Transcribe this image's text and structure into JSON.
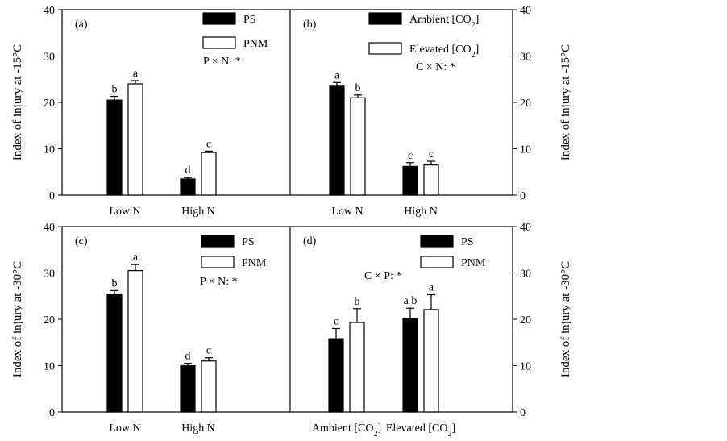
{
  "figure": {
    "background": "#ffffff",
    "stroke": "#000000",
    "filled_color": "#000000",
    "open_color": "#ffffff"
  },
  "chart_data": [
    {
      "panel": "(a)",
      "type": "bar",
      "categories": [
        "Low N",
        "High N"
      ],
      "series": [
        {
          "name": "PS",
          "fill": "filled",
          "values": [
            20.5,
            3.5
          ],
          "errors": [
            0.8,
            0.3
          ]
        },
        {
          "name": "PNM",
          "fill": "open",
          "values": [
            24,
            9.2
          ],
          "errors": [
            0.7,
            0.3
          ]
        }
      ],
      "significance_letters": [
        [
          "b",
          "d"
        ],
        [
          "a",
          "c"
        ]
      ],
      "annotation": "P × N: *",
      "ylabel": "Index of injury at -15°C",
      "ylim": [
        0,
        40
      ],
      "yticks": [
        0,
        10,
        20,
        30,
        40
      ],
      "yaxis_side": "left",
      "legend_position": "top-right"
    },
    {
      "panel": "(b)",
      "type": "bar",
      "categories": [
        "Low N",
        "High N"
      ],
      "series": [
        {
          "name": "Ambient [CO2]",
          "fill": "filled",
          "values": [
            23.5,
            6.2
          ],
          "errors": [
            0.8,
            0.8
          ]
        },
        {
          "name": "Elevated [CO2]",
          "fill": "open",
          "values": [
            21,
            6.5
          ],
          "errors": [
            0.6,
            0.8
          ]
        }
      ],
      "significance_letters": [
        [
          "a",
          "c"
        ],
        [
          "b",
          "c"
        ]
      ],
      "annotation": "C × N: *",
      "ylabel": "Index of injury at -15°C",
      "ylim": [
        0,
        40
      ],
      "yticks": [
        0,
        10,
        20,
        30,
        40
      ],
      "yaxis_side": "right",
      "legend_position": "top-right"
    },
    {
      "panel": "(c)",
      "type": "bar",
      "categories": [
        "Low N",
        "High N"
      ],
      "series": [
        {
          "name": "PS",
          "fill": "filled",
          "values": [
            25.3,
            10
          ],
          "errors": [
            0.9,
            0.5
          ]
        },
        {
          "name": "PNM",
          "fill": "open",
          "values": [
            30.5,
            11
          ],
          "errors": [
            1.3,
            0.7
          ]
        }
      ],
      "significance_letters": [
        [
          "b",
          "d"
        ],
        [
          "a",
          "c"
        ]
      ],
      "annotation": "P × N: *",
      "ylabel": "Index of injury at -30°C",
      "ylim": [
        0,
        40
      ],
      "yticks": [
        0,
        10,
        20,
        30,
        40
      ],
      "yaxis_side": "left",
      "legend_position": "top-right"
    },
    {
      "panel": "(d)",
      "type": "bar",
      "categories": [
        "Ambient [CO2]",
        "Elevated [CO2]"
      ],
      "series": [
        {
          "name": "PS",
          "fill": "filled",
          "values": [
            15.8,
            20.1
          ],
          "errors": [
            2.2,
            2.3
          ]
        },
        {
          "name": "PNM",
          "fill": "open",
          "values": [
            19.3,
            22.1
          ],
          "errors": [
            3,
            3.2
          ]
        }
      ],
      "significance_letters": [
        [
          "c",
          "a b"
        ],
        [
          "b",
          "a"
        ]
      ],
      "annotation": "C × P: *",
      "ylabel": "Index of injury at -30°C",
      "ylim": [
        0,
        40
      ],
      "yticks": [
        0,
        10,
        20,
        30,
        40
      ],
      "yaxis_side": "right",
      "legend_position": "top-right"
    }
  ]
}
